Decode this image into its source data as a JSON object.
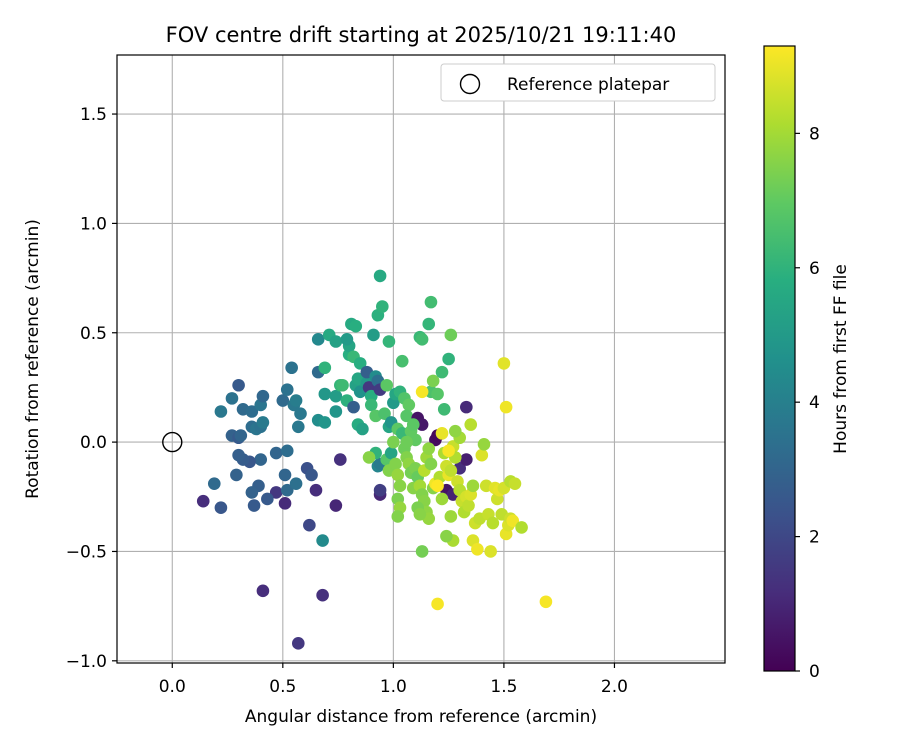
{
  "chart_data": {
    "type": "scatter",
    "title": "FOV centre drift starting at 2025/10/21 19:11:40",
    "xlabel": "Angular distance from reference (arcmin)",
    "ylabel": "Rotation from reference (arcmin)",
    "xlim": [
      -0.25,
      2.5
    ],
    "ylim": [
      -1.01,
      1.77
    ],
    "xticks": [
      0.0,
      0.5,
      1.0,
      1.5,
      2.0
    ],
    "yticks": [
      -1.0,
      -0.5,
      0.0,
      0.5,
      1.0,
      1.5
    ],
    "xtick_labels": [
      "0.0",
      "0.5",
      "1.0",
      "1.5",
      "2.0"
    ],
    "ytick_labels": [
      "−1.0",
      "−0.5",
      "0.0",
      "0.5",
      "1.0",
      "1.5"
    ],
    "grid": true,
    "legend": {
      "position": "upper-right",
      "entries": [
        {
          "label": "Reference platepar",
          "marker": "open-circle"
        }
      ]
    },
    "reference_point": {
      "x": 0.0,
      "y": 0.0
    },
    "colorbar": {
      "label": "Hours from first FF file",
      "colormap": "viridis",
      "range": [
        0,
        9.3
      ],
      "ticks": [
        0,
        2,
        4,
        6,
        8
      ],
      "tick_labels": [
        "0",
        "2",
        "4",
        "6",
        "8"
      ]
    },
    "points": [
      {
        "x": 0.14,
        "y": -0.27,
        "h": 1.2
      },
      {
        "x": 0.22,
        "y": -0.3,
        "h": 2.5
      },
      {
        "x": 0.41,
        "y": -0.68,
        "h": 1.2
      },
      {
        "x": 0.57,
        "y": -0.92,
        "h": 1.5
      },
      {
        "x": 0.68,
        "y": -0.7,
        "h": 1.3
      },
      {
        "x": 0.74,
        "y": -0.29,
        "h": 1.0
      },
      {
        "x": 0.62,
        "y": -0.38,
        "h": 2.0
      },
      {
        "x": 0.65,
        "y": -0.22,
        "h": 1.2
      },
      {
        "x": 0.76,
        "y": -0.08,
        "h": 1.3
      },
      {
        "x": 0.51,
        "y": -0.28,
        "h": 1.1
      },
      {
        "x": 0.47,
        "y": -0.23,
        "h": 1.5
      },
      {
        "x": 0.43,
        "y": -0.26,
        "h": 2.6
      },
      {
        "x": 0.39,
        "y": -0.2,
        "h": 2.8
      },
      {
        "x": 0.36,
        "y": -0.23,
        "h": 2.9
      },
      {
        "x": 0.37,
        "y": -0.29,
        "h": 2.6
      },
      {
        "x": 0.29,
        "y": -0.15,
        "h": 2.9
      },
      {
        "x": 0.19,
        "y": -0.19,
        "h": 3.2
      },
      {
        "x": 0.52,
        "y": -0.22,
        "h": 3.2
      },
      {
        "x": 0.51,
        "y": -0.15,
        "h": 3.0
      },
      {
        "x": 0.56,
        "y": -0.19,
        "h": 3.4
      },
      {
        "x": 0.61,
        "y": -0.12,
        "h": 2.3
      },
      {
        "x": 0.63,
        "y": -0.15,
        "h": 2.5
      },
      {
        "x": 0.47,
        "y": -0.05,
        "h": 3.0
      },
      {
        "x": 0.52,
        "y": -0.04,
        "h": 3.3
      },
      {
        "x": 0.4,
        "y": -0.08,
        "h": 3.0
      },
      {
        "x": 0.35,
        "y": -0.09,
        "h": 2.5
      },
      {
        "x": 0.32,
        "y": -0.08,
        "h": 2.7
      },
      {
        "x": 0.3,
        "y": -0.06,
        "h": 2.8
      },
      {
        "x": 0.27,
        "y": 0.03,
        "h": 2.9
      },
      {
        "x": 0.3,
        "y": 0.02,
        "h": 2.6
      },
      {
        "x": 0.31,
        "y": 0.03,
        "h": 3.0
      },
      {
        "x": 0.36,
        "y": 0.07,
        "h": 3.3
      },
      {
        "x": 0.38,
        "y": 0.06,
        "h": 3.6
      },
      {
        "x": 0.4,
        "y": 0.07,
        "h": 3.5
      },
      {
        "x": 0.41,
        "y": 0.09,
        "h": 3.8
      },
      {
        "x": 0.22,
        "y": 0.14,
        "h": 3.7
      },
      {
        "x": 0.27,
        "y": 0.2,
        "h": 3.5
      },
      {
        "x": 0.32,
        "y": 0.15,
        "h": 3.2
      },
      {
        "x": 0.36,
        "y": 0.14,
        "h": 3.3
      },
      {
        "x": 0.4,
        "y": 0.17,
        "h": 3.6
      },
      {
        "x": 0.41,
        "y": 0.21,
        "h": 3.1
      },
      {
        "x": 0.3,
        "y": 0.26,
        "h": 2.6
      },
      {
        "x": 0.5,
        "y": 0.19,
        "h": 3.2
      },
      {
        "x": 0.52,
        "y": 0.24,
        "h": 3.5
      },
      {
        "x": 0.54,
        "y": 0.34,
        "h": 3.5
      },
      {
        "x": 0.55,
        "y": 0.17,
        "h": 3.7
      },
      {
        "x": 0.56,
        "y": 0.19,
        "h": 3.9
      },
      {
        "x": 0.58,
        "y": 0.13,
        "h": 3.7
      },
      {
        "x": 0.57,
        "y": 0.07,
        "h": 3.7
      },
      {
        "x": 0.66,
        "y": 0.1,
        "h": 4.5
      },
      {
        "x": 0.69,
        "y": 0.09,
        "h": 4.8
      },
      {
        "x": 0.69,
        "y": 0.22,
        "h": 4.9
      },
      {
        "x": 0.66,
        "y": 0.32,
        "h": 3.2
      },
      {
        "x": 0.66,
        "y": 0.47,
        "h": 4.3
      },
      {
        "x": 0.68,
        "y": -0.45,
        "h": 4.4
      },
      {
        "x": 0.69,
        "y": 0.34,
        "h": 6.0
      },
      {
        "x": 0.71,
        "y": 0.49,
        "h": 5.6
      },
      {
        "x": 0.74,
        "y": 0.46,
        "h": 5.3
      },
      {
        "x": 0.74,
        "y": 0.21,
        "h": 5.1
      },
      {
        "x": 0.74,
        "y": 0.14,
        "h": 4.8
      },
      {
        "x": 0.76,
        "y": 0.26,
        "h": 6.1
      },
      {
        "x": 0.77,
        "y": 0.26,
        "h": 6.3
      },
      {
        "x": 0.79,
        "y": 0.19,
        "h": 5.9
      },
      {
        "x": 0.8,
        "y": 0.4,
        "h": 5.8
      },
      {
        "x": 0.8,
        "y": 0.44,
        "h": 5.4
      },
      {
        "x": 0.79,
        "y": 0.47,
        "h": 5.0
      },
      {
        "x": 0.81,
        "y": 0.54,
        "h": 5.6
      },
      {
        "x": 0.82,
        "y": 0.39,
        "h": 6.2
      },
      {
        "x": 0.83,
        "y": 0.53,
        "h": 5.8
      },
      {
        "x": 0.83,
        "y": 0.26,
        "h": 5.3
      },
      {
        "x": 0.84,
        "y": 0.29,
        "h": 5.5
      },
      {
        "x": 0.85,
        "y": 0.36,
        "h": 5.8
      },
      {
        "x": 0.85,
        "y": 0.23,
        "h": 4.7
      },
      {
        "x": 0.82,
        "y": 0.16,
        "h": 2.8
      },
      {
        "x": 0.84,
        "y": 0.08,
        "h": 5.7
      },
      {
        "x": 0.86,
        "y": 0.06,
        "h": 5.3
      },
      {
        "x": 0.88,
        "y": 0.27,
        "h": 5.0
      },
      {
        "x": 0.88,
        "y": 0.32,
        "h": 2.8
      },
      {
        "x": 0.89,
        "y": 0.25,
        "h": 1.5
      },
      {
        "x": 0.9,
        "y": 0.21,
        "h": 5.8
      },
      {
        "x": 0.9,
        "y": 0.17,
        "h": 6.2
      },
      {
        "x": 0.92,
        "y": 0.12,
        "h": 6.8
      },
      {
        "x": 0.92,
        "y": 0.3,
        "h": 4.5
      },
      {
        "x": 0.93,
        "y": 0.28,
        "h": 3.4
      },
      {
        "x": 0.94,
        "y": 0.24,
        "h": 1.6
      },
      {
        "x": 0.91,
        "y": 0.49,
        "h": 5.1
      },
      {
        "x": 0.93,
        "y": 0.58,
        "h": 5.9
      },
      {
        "x": 0.94,
        "y": 0.76,
        "h": 5.6
      },
      {
        "x": 0.95,
        "y": 0.62,
        "h": 6.0
      },
      {
        "x": 0.96,
        "y": 0.13,
        "h": 6.6
      },
      {
        "x": 0.97,
        "y": 0.26,
        "h": 6.9
      },
      {
        "x": 0.98,
        "y": 0.46,
        "h": 6.1
      },
      {
        "x": 0.98,
        "y": 0.07,
        "h": 5.4
      },
      {
        "x": 0.99,
        "y": 0.09,
        "h": 4.8
      },
      {
        "x": 1.0,
        "y": 0.18,
        "h": 5.0
      },
      {
        "x": 1.01,
        "y": 0.22,
        "h": 5.5
      },
      {
        "x": 1.03,
        "y": 0.23,
        "h": 6.0
      },
      {
        "x": 1.04,
        "y": 0.37,
        "h": 6.5
      },
      {
        "x": 1.05,
        "y": 0.2,
        "h": 6.7
      },
      {
        "x": 1.07,
        "y": 0.17,
        "h": 7.0
      },
      {
        "x": 1.02,
        "y": 0.06,
        "h": 6.9
      },
      {
        "x": 1.04,
        "y": 0.04,
        "h": 6.2
      },
      {
        "x": 1.06,
        "y": 0.12,
        "h": 6.8
      },
      {
        "x": 1.08,
        "y": 0.05,
        "h": 7.0
      },
      {
        "x": 1.12,
        "y": 0.48,
        "h": 6.2
      },
      {
        "x": 1.13,
        "y": 0.47,
        "h": 6.4
      },
      {
        "x": 1.16,
        "y": 0.54,
        "h": 6.1
      },
      {
        "x": 1.17,
        "y": 0.64,
        "h": 6.4
      },
      {
        "x": 1.17,
        "y": 0.23,
        "h": 6.6
      },
      {
        "x": 1.18,
        "y": 0.28,
        "h": 7.4
      },
      {
        "x": 1.2,
        "y": 0.22,
        "h": 6.8
      },
      {
        "x": 1.22,
        "y": 0.32,
        "h": 6.3
      },
      {
        "x": 1.25,
        "y": 0.38,
        "h": 6.0
      },
      {
        "x": 1.23,
        "y": 0.15,
        "h": 6.3
      },
      {
        "x": 1.26,
        "y": 0.49,
        "h": 7.2
      },
      {
        "x": 1.33,
        "y": 0.16,
        "h": 1.1
      },
      {
        "x": 1.11,
        "y": 0.11,
        "h": 0.5
      },
      {
        "x": 1.13,
        "y": 0.08,
        "h": 0.6
      },
      {
        "x": 1.19,
        "y": 0.01,
        "h": 0.3
      },
      {
        "x": 1.2,
        "y": 0.03,
        "h": 0.2
      },
      {
        "x": 1.3,
        "y": -0.12,
        "h": 1.2
      },
      {
        "x": 1.33,
        "y": -0.08,
        "h": 0.8
      },
      {
        "x": 1.24,
        "y": -0.22,
        "h": 0.5
      },
      {
        "x": 1.27,
        "y": -0.24,
        "h": 0.9
      },
      {
        "x": 0.94,
        "y": -0.24,
        "h": 1.0
      },
      {
        "x": 0.94,
        "y": -0.22,
        "h": 1.7
      },
      {
        "x": 0.93,
        "y": -0.11,
        "h": 4.2
      },
      {
        "x": 0.94,
        "y": -0.1,
        "h": 3.8
      },
      {
        "x": 0.92,
        "y": -0.05,
        "h": 6.0
      },
      {
        "x": 0.89,
        "y": -0.07,
        "h": 7.6
      },
      {
        "x": 0.97,
        "y": -0.08,
        "h": 6.8
      },
      {
        "x": 0.98,
        "y": -0.13,
        "h": 7.5
      },
      {
        "x": 0.99,
        "y": -0.05,
        "h": 5.4
      },
      {
        "x": 1.0,
        "y": 0.0,
        "h": 7.4
      },
      {
        "x": 1.01,
        "y": -0.1,
        "h": 7.5
      },
      {
        "x": 1.02,
        "y": -0.15,
        "h": 7.8
      },
      {
        "x": 1.03,
        "y": -0.2,
        "h": 7.6
      },
      {
        "x": 1.02,
        "y": -0.26,
        "h": 7.4
      },
      {
        "x": 1.03,
        "y": -0.3,
        "h": 7.8
      },
      {
        "x": 1.02,
        "y": -0.34,
        "h": 7.5
      },
      {
        "x": 1.05,
        "y": -0.03,
        "h": 7.2
      },
      {
        "x": 1.06,
        "y": -0.07,
        "h": 7.5
      },
      {
        "x": 1.07,
        "y": -0.1,
        "h": 7.7
      },
      {
        "x": 1.08,
        "y": -0.14,
        "h": 7.3
      },
      {
        "x": 1.09,
        "y": -0.21,
        "h": 7.6
      },
      {
        "x": 1.1,
        "y": -0.12,
        "h": 7.4
      },
      {
        "x": 1.11,
        "y": -0.16,
        "h": 7.1
      },
      {
        "x": 1.12,
        "y": -0.2,
        "h": 8.0
      },
      {
        "x": 1.13,
        "y": -0.24,
        "h": 7.5
      },
      {
        "x": 1.14,
        "y": -0.27,
        "h": 7.6
      },
      {
        "x": 1.15,
        "y": -0.32,
        "h": 7.7
      },
      {
        "x": 1.16,
        "y": -0.35,
        "h": 7.8
      },
      {
        "x": 1.11,
        "y": -0.3,
        "h": 7.4
      },
      {
        "x": 1.12,
        "y": -0.33,
        "h": 7.6
      },
      {
        "x": 1.13,
        "y": -0.5,
        "h": 7.3
      },
      {
        "x": 1.14,
        "y": -0.13,
        "h": 8.3
      },
      {
        "x": 1.15,
        "y": -0.07,
        "h": 7.9
      },
      {
        "x": 1.16,
        "y": -0.03,
        "h": 7.7
      },
      {
        "x": 1.17,
        "y": -0.1,
        "h": 7.5
      },
      {
        "x": 1.18,
        "y": -0.21,
        "h": 7.6
      },
      {
        "x": 1.19,
        "y": -0.19,
        "h": 9.1
      },
      {
        "x": 1.2,
        "y": -0.74,
        "h": 9.2
      },
      {
        "x": 1.21,
        "y": -0.16,
        "h": 8.2
      },
      {
        "x": 1.22,
        "y": -0.26,
        "h": 7.9
      },
      {
        "x": 1.23,
        "y": -0.05,
        "h": 8.1
      },
      {
        "x": 1.24,
        "y": -0.11,
        "h": 8.6
      },
      {
        "x": 1.25,
        "y": -0.15,
        "h": 9.0
      },
      {
        "x": 1.26,
        "y": -0.13,
        "h": 8.4
      },
      {
        "x": 1.27,
        "y": -0.02,
        "h": 8.5
      },
      {
        "x": 1.28,
        "y": -0.07,
        "h": 8.2
      },
      {
        "x": 1.26,
        "y": -0.34,
        "h": 7.9
      },
      {
        "x": 1.27,
        "y": -0.45,
        "h": 8.1
      },
      {
        "x": 1.24,
        "y": -0.43,
        "h": 7.6
      },
      {
        "x": 1.29,
        "y": -0.18,
        "h": 8.6
      },
      {
        "x": 1.3,
        "y": -0.22,
        "h": 8.3
      },
      {
        "x": 1.31,
        "y": -0.27,
        "h": 8.5
      },
      {
        "x": 1.32,
        "y": -0.32,
        "h": 8.2
      },
      {
        "x": 1.33,
        "y": -0.25,
        "h": 8.7
      },
      {
        "x": 1.34,
        "y": -0.29,
        "h": 8.4
      },
      {
        "x": 1.35,
        "y": -0.24,
        "h": 8.8
      },
      {
        "x": 1.3,
        "y": 0.02,
        "h": 8.0
      },
      {
        "x": 1.28,
        "y": 0.05,
        "h": 7.7
      },
      {
        "x": 1.22,
        "y": 0.04,
        "h": 9.0
      },
      {
        "x": 1.35,
        "y": 0.08,
        "h": 8.3
      },
      {
        "x": 1.36,
        "y": -0.45,
        "h": 8.8
      },
      {
        "x": 1.38,
        "y": -0.49,
        "h": 9.1
      },
      {
        "x": 1.37,
        "y": -0.37,
        "h": 8.6
      },
      {
        "x": 1.39,
        "y": -0.35,
        "h": 8.4
      },
      {
        "x": 1.4,
        "y": -0.06,
        "h": 8.8
      },
      {
        "x": 1.41,
        "y": -0.01,
        "h": 7.8
      },
      {
        "x": 1.42,
        "y": -0.2,
        "h": 8.6
      },
      {
        "x": 1.43,
        "y": -0.33,
        "h": 8.5
      },
      {
        "x": 1.44,
        "y": -0.5,
        "h": 8.8
      },
      {
        "x": 1.45,
        "y": -0.37,
        "h": 8.3
      },
      {
        "x": 1.46,
        "y": -0.21,
        "h": 8.9
      },
      {
        "x": 1.47,
        "y": -0.26,
        "h": 8.6
      },
      {
        "x": 1.48,
        "y": -0.22,
        "h": 9.0
      },
      {
        "x": 1.49,
        "y": -0.33,
        "h": 8.4
      },
      {
        "x": 1.5,
        "y": -0.21,
        "h": 8.7
      },
      {
        "x": 1.51,
        "y": -0.42,
        "h": 9.0
      },
      {
        "x": 1.52,
        "y": -0.38,
        "h": 8.8
      },
      {
        "x": 1.53,
        "y": -0.35,
        "h": 8.6
      },
      {
        "x": 1.54,
        "y": -0.36,
        "h": 9.1
      },
      {
        "x": 1.53,
        "y": -0.18,
        "h": 8.3
      },
      {
        "x": 1.55,
        "y": -0.19,
        "h": 8.5
      },
      {
        "x": 1.58,
        "y": -0.39,
        "h": 8.2
      },
      {
        "x": 1.5,
        "y": 0.36,
        "h": 8.9
      },
      {
        "x": 1.51,
        "y": 0.16,
        "h": 9.1
      },
      {
        "x": 1.69,
        "y": -0.73,
        "h": 9.2
      },
      {
        "x": 1.25,
        "y": -0.04,
        "h": 9.2
      },
      {
        "x": 1.13,
        "y": 0.23,
        "h": 9.2
      },
      {
        "x": 1.2,
        "y": -0.2,
        "h": 9.3
      },
      {
        "x": 1.36,
        "y": -0.2,
        "h": 7.9
      },
      {
        "x": 1.1,
        "y": 0.01,
        "h": 7.0
      },
      {
        "x": 1.06,
        "y": 0.0,
        "h": 7.2
      },
      {
        "x": 1.09,
        "y": 0.08,
        "h": 6.9
      }
    ]
  }
}
